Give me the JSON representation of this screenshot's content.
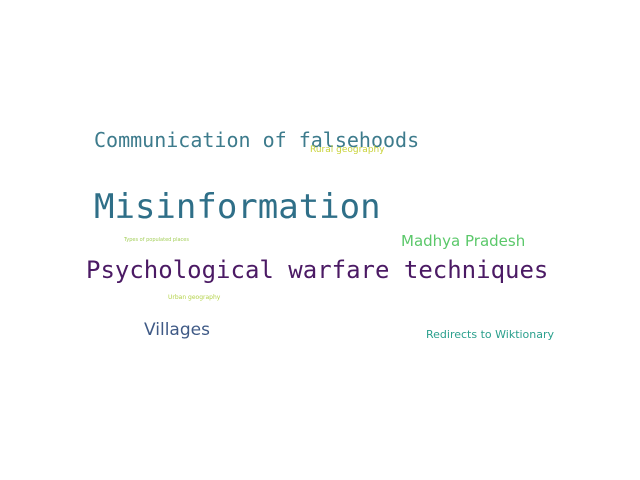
{
  "wordcloud": {
    "words": {
      "misinformation": {
        "text": "Misinformation",
        "color": "#2f6f88"
      },
      "communication": {
        "text": "Communication of falsehoods",
        "color": "#3d7b8c"
      },
      "psychological": {
        "text": "Psychological warfare techniques",
        "color": "#4b1a64"
      },
      "villages": {
        "text": "Villages",
        "color": "#3f5a86"
      },
      "madhya_pradesh": {
        "text": "Madhya Pradesh",
        "color": "#5bc86a"
      },
      "redirects": {
        "text": "Redirects to Wiktionary",
        "color": "#2ba08d"
      },
      "rural_geography": {
        "text": "Rural geography",
        "color": "#c9d33a"
      },
      "urban_geography": {
        "text": "Urban geography",
        "color": "#b4d34a"
      },
      "types_populated": {
        "text": "Types of populated places",
        "color": "#a4cf5a"
      }
    }
  }
}
